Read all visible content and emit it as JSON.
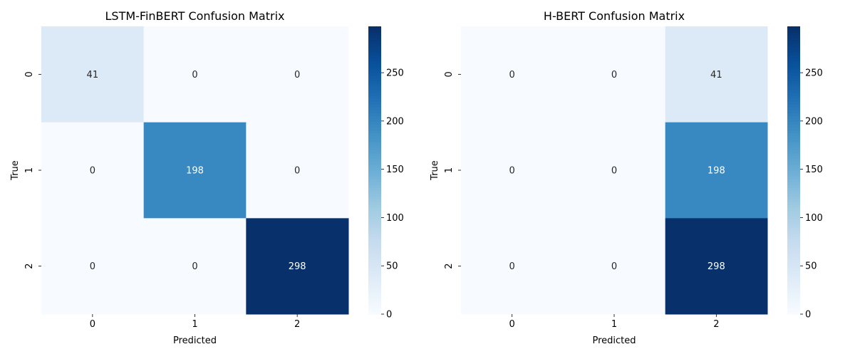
{
  "chart_data": [
    {
      "type": "heatmap",
      "title": "LSTM-FinBERT Confusion Matrix",
      "xlabel": "Predicted",
      "ylabel": "True",
      "x_categories": [
        "0",
        "1",
        "2"
      ],
      "y_categories": [
        "0",
        "1",
        "2"
      ],
      "values": [
        [
          41,
          0,
          0
        ],
        [
          0,
          198,
          0
        ],
        [
          0,
          0,
          298
        ]
      ],
      "colormap": "Blues",
      "vmin": 0,
      "vmax": 298,
      "colorbar_ticks": [
        0,
        50,
        100,
        150,
        200,
        250
      ]
    },
    {
      "type": "heatmap",
      "title": "H-BERT Confusion Matrix",
      "xlabel": "Predicted",
      "ylabel": "True",
      "x_categories": [
        "0",
        "1",
        "2"
      ],
      "y_categories": [
        "0",
        "1",
        "2"
      ],
      "values": [
        [
          0,
          0,
          41
        ],
        [
          0,
          0,
          198
        ],
        [
          0,
          0,
          298
        ]
      ],
      "colormap": "Blues",
      "vmin": 0,
      "vmax": 298,
      "colorbar_ticks": [
        0,
        50,
        100,
        150,
        200,
        250
      ]
    }
  ]
}
